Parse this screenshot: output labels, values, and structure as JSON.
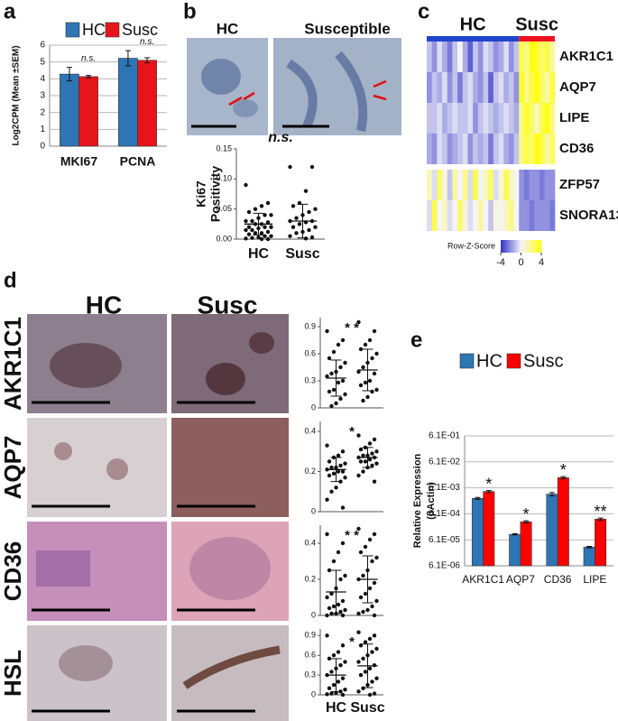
{
  "chart_data": [
    {
      "type": "bar",
      "label": "a",
      "ylabel": "Log2CPM (Mean ±SEM)",
      "categories": [
        "MKI67",
        "PCNA"
      ],
      "series": [
        {
          "name": "HC",
          "color": "#2e75b6",
          "values": [
            4.28,
            5.22
          ],
          "errors": [
            0.4,
            0.45
          ]
        },
        {
          "name": "Susc",
          "color": "#e8141b",
          "values": [
            4.13,
            5.1
          ],
          "errors": [
            0.07,
            0.15
          ]
        }
      ],
      "annotations": [
        "n.s.",
        "n.s."
      ],
      "ylim": [
        0,
        6
      ],
      "yticks": [
        0,
        1,
        2,
        3,
        4,
        5,
        6
      ],
      "grid": true
    },
    {
      "type": "strip",
      "label": "b",
      "image_titles": [
        "HC",
        "Susceptible"
      ],
      "ylabel": [
        "Ki67",
        "Positivity"
      ],
      "categories": [
        "HC",
        "Susc"
      ],
      "points": [
        [
          0.09,
          0.06,
          0.055,
          0.05,
          0.045,
          0.04,
          0.04,
          0.035,
          0.03,
          0.03,
          0.028,
          0.025,
          0.025,
          0.02,
          0.02,
          0.02,
          0.018,
          0.015,
          0.015,
          0.012,
          0.01,
          0.01,
          0.008,
          0.005,
          0.005,
          0.003,
          0.002,
          0.001,
          0,
          0
        ],
        [
          0.12,
          0.12,
          0.08,
          0.06,
          0.055,
          0.05,
          0.045,
          0.04,
          0.035,
          0.03,
          0.03,
          0.028,
          0.025,
          0.02,
          0.02,
          0.015,
          0.012,
          0.01,
          0.005,
          0.003,
          0.001
        ]
      ],
      "means": [
        0.025,
        0.03
      ],
      "sd": [
        0.018,
        0.028
      ],
      "annotation": "n.s.",
      "ylim": [
        0,
        0.15
      ],
      "yticks": [
        {
          "value": 0,
          "label": "0.00"
        },
        0.05,
        {
          "value": 0.1,
          "label": "0.10"
        },
        0.15
      ]
    },
    {
      "type": "heatmap",
      "label": "c",
      "rows": [
        "AKR1C1",
        "AQP7",
        "LIPE",
        "CD36",
        "ZFP57",
        "SNORA13"
      ],
      "series": [
        {
          "name": "HC",
          "color": "#2244cc",
          "values": [
            [
              -1,
              -2,
              -0.5,
              -1.5,
              -2.5,
              -1,
              0,
              -1.5,
              -3,
              -1,
              -2,
              -0.5,
              -1,
              -2,
              -1.5,
              -0.5,
              -2,
              -1
            ],
            [
              -2,
              -1,
              -1.5,
              -0.5,
              -2,
              -1,
              -2.5,
              -1,
              -0.5,
              -1.5,
              -2,
              -1,
              -3,
              -1,
              -0.5,
              -1.5,
              -1,
              -2
            ],
            [
              -1,
              -1,
              -0.5,
              -1.5,
              -1,
              -0.5,
              -1,
              -1,
              -0.5,
              -2,
              -1,
              -0.5,
              -1,
              -1.5,
              -1,
              -0.5,
              -1,
              -1.5
            ],
            [
              -1.5,
              -2,
              -0.5,
              -1,
              -2,
              -1.5,
              -1,
              -0.5,
              -2,
              -1,
              -1.5,
              -1,
              -2.5,
              -1,
              -0.5,
              -1.5,
              -2,
              -1
            ],
            [
              1,
              -0.5,
              2.5,
              0.5,
              -1,
              1.5,
              0,
              2,
              -0.5,
              3,
              0,
              1,
              2.5,
              -0.5,
              0.5,
              3,
              1,
              0
            ],
            [
              -0.5,
              3,
              0,
              1,
              -0.5,
              0,
              2.5,
              0.5,
              -0.5,
              0,
              1.5,
              0,
              -1,
              0.5,
              0,
              1,
              2,
              0
            ]
          ]
        },
        {
          "name": "Susc",
          "color": "#ee1122",
          "values": [
            [
              3,
              2,
              4,
              3.5,
              2.5,
              3,
              1.5
            ],
            [
              3.5,
              2,
              3,
              4,
              2.5,
              1.5,
              3
            ],
            [
              2,
              3.5,
              2.5,
              1,
              3,
              4,
              2
            ],
            [
              2,
              3,
              2.5,
              4,
              3,
              1.5,
              2.5
            ],
            [
              -2,
              -2.5,
              -2,
              -2,
              -2.5,
              -2,
              -2
            ],
            [
              -2,
              -2,
              -2.5,
              -2,
              -2,
              -2,
              -2.5
            ]
          ]
        }
      ],
      "colorbar_label": "Row-Z-Score",
      "colors": [
        "#3030c8",
        "#f4f4f8",
        "#ffff10"
      ],
      "zlim": [
        -4,
        4
      ],
      "zticks": [
        -4,
        0,
        4
      ]
    },
    {
      "type": "strip",
      "label": "d",
      "column_titles": [
        "HC",
        "Susc"
      ],
      "title": "AKR1C1",
      "points": [
        [
          0.85,
          0.75,
          0.7,
          0.62,
          0.55,
          0.5,
          0.45,
          0.4,
          0.38,
          0.35,
          0.3,
          0.28,
          0.2,
          0.18,
          0.15,
          0.1,
          0.05,
          0.02
        ],
        [
          0.95,
          0.85,
          0.75,
          0.7,
          0.65,
          0.6,
          0.55,
          0.5,
          0.45,
          0.4,
          0.38,
          0.3,
          0.28,
          0.25,
          0.2,
          0.18,
          0.12,
          0.08
        ]
      ],
      "means": [
        0.33,
        0.42
      ],
      "sd": [
        0.2,
        0.23
      ],
      "annotation": "* *",
      "ylim": [
        0,
        1
      ],
      "yticks": [
        0,
        0.3,
        0.6,
        0.9
      ]
    },
    {
      "type": "strip",
      "title": "AQP7",
      "points": [
        [
          0.33,
          0.3,
          0.28,
          0.27,
          0.25,
          0.24,
          0.23,
          0.22,
          0.22,
          0.21,
          0.2,
          0.2,
          0.19,
          0.18,
          0.17,
          0.15,
          0.12,
          0.1,
          0.06,
          0.02
        ],
        [
          0.38,
          0.36,
          0.34,
          0.32,
          0.31,
          0.3,
          0.29,
          0.28,
          0.28,
          0.27,
          0.27,
          0.26,
          0.25,
          0.25,
          0.24,
          0.23,
          0.22,
          0.2,
          0.18,
          0.15
        ]
      ],
      "means": [
        0.21,
        0.27
      ],
      "sd": [
        0.06,
        0.05
      ],
      "annotation": "*",
      "ylim": [
        0,
        0.45
      ],
      "yticks": [
        0,
        0.2,
        0.4
      ]
    },
    {
      "type": "strip",
      "title": "CD36",
      "points": [
        [
          0.45,
          0.4,
          0.35,
          0.3,
          0.25,
          0.22,
          0.2,
          0.15,
          0.12,
          0.1,
          0.08,
          0.06,
          0.05,
          0.04,
          0.03,
          0.02,
          0.01,
          0.01,
          0,
          0
        ],
        [
          0.48,
          0.45,
          0.42,
          0.38,
          0.35,
          0.32,
          0.3,
          0.25,
          0.22,
          0.2,
          0.18,
          0.15,
          0.12,
          0.1,
          0.08,
          0.05,
          0.03,
          0.02,
          0.01,
          0
        ]
      ],
      "means": [
        0.13,
        0.2
      ],
      "sd": [
        0.12,
        0.13
      ],
      "annotation": "* *",
      "ylim": [
        0,
        0.5
      ],
      "yticks": [
        0,
        0.2,
        0.4
      ]
    },
    {
      "type": "strip",
      "title": "HSL",
      "categories": [
        "HC",
        "Susc"
      ],
      "points": [
        [
          0.9,
          0.75,
          0.65,
          0.6,
          0.55,
          0.5,
          0.45,
          0.4,
          0.35,
          0.3,
          0.25,
          0.2,
          0.15,
          0.1,
          0.08,
          0.05,
          0.03,
          0.02,
          0.01,
          0
        ],
        [
          0.95,
          0.9,
          0.85,
          0.8,
          0.75,
          0.7,
          0.65,
          0.6,
          0.55,
          0.5,
          0.45,
          0.4,
          0.35,
          0.3,
          0.25,
          0.2,
          0.15,
          0.1,
          0.05,
          0.02,
          0
        ]
      ],
      "means": [
        0.3,
        0.44
      ],
      "sd": [
        0.25,
        0.33
      ],
      "annotation": "*",
      "ylim": [
        0,
        1
      ],
      "yticks": [
        0,
        0.3,
        0.6,
        0.9
      ]
    },
    {
      "type": "bar",
      "label": "e",
      "log": true,
      "ylabel": [
        "Relative Expression",
        "(βActin)"
      ],
      "categories": [
        "AKR1C1",
        "AQP7",
        "CD36",
        "LIPE"
      ],
      "series": [
        {
          "name": "HC",
          "color": "#2e75b6",
          "values": [
            0.0024,
            9.9e-05,
            0.0035,
            3.2e-05
          ],
          "errors": [
            0.0002,
            5e-06,
            0.0005,
            2e-06
          ]
        },
        {
          "name": "Susc",
          "color": "#ff0000",
          "values": [
            0.0044,
            0.0003,
            0.015,
            0.00038
          ],
          "errors": [
            0.0004,
            3e-05,
            0.0015,
            4e-05
          ]
        }
      ],
      "annotations": [
        "*",
        "*",
        "*",
        "**"
      ],
      "ylim": [
        6.1e-06,
        0.61
      ],
      "yticks": [
        {
          "value": 6.1e-06,
          "label": "6.1E-06"
        },
        {
          "value": 6.1e-05,
          "label": "6.1E-05"
        },
        {
          "value": 0.00061,
          "label": "6.1E-04"
        },
        {
          "value": 0.0061,
          "label": "6.1E-03"
        },
        {
          "value": 0.061,
          "label": "6.1E-02"
        },
        {
          "value": 0.61,
          "label": "6.1E-01"
        }
      ],
      "grid": true
    }
  ]
}
